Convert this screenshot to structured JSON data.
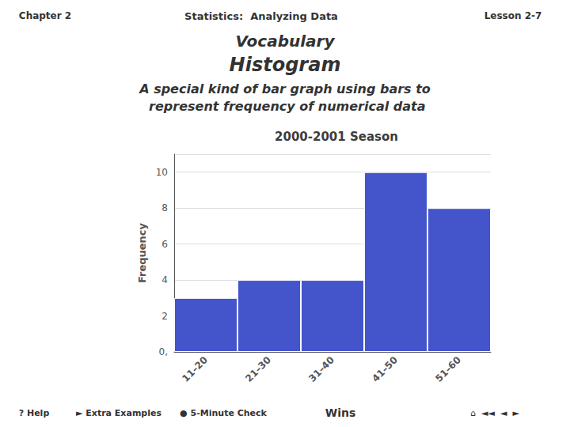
{
  "chart_data": {
    "type": "bar",
    "title": "2000-2001 Season",
    "ylabel": "Frequency",
    "categories": [
      "11–20",
      "21–30",
      "31–40",
      "41–50",
      "51–60"
    ],
    "values": [
      3,
      4,
      4,
      10,
      8
    ],
    "color": "#4455CC",
    "ylim": [
      0,
      11
    ],
    "yticks": [
      {
        "value": 0,
        "label": "0,"
      },
      2,
      4,
      6,
      8,
      10
    ],
    "grid": true,
    "annotations": [
      "Chapter 2",
      "Statistics:  Analyzing Data",
      "Lesson 2-7",
      "Vocabulary",
      "Histogram",
      "A special kind of bar graph using bars to",
      " represent frequency of numerical data",
      "? Help",
      "► Extra Examples",
      "● 5-Minute Check",
      "Wins",
      "⌂  ◄◄  ◄  ►"
    ]
  }
}
